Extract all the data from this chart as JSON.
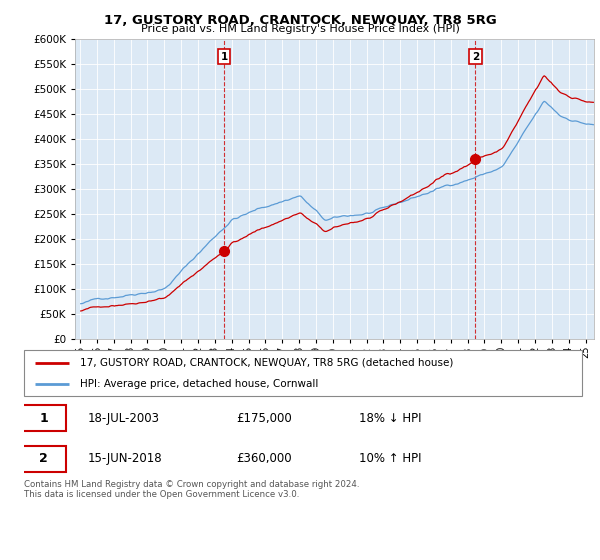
{
  "title": "17, GUSTORY ROAD, CRANTOCK, NEWQUAY, TR8 5RG",
  "subtitle": "Price paid vs. HM Land Registry's House Price Index (HPI)",
  "legend_line1": "17, GUSTORY ROAD, CRANTOCK, NEWQUAY, TR8 5RG (detached house)",
  "legend_line2": "HPI: Average price, detached house, Cornwall",
  "footer": "Contains HM Land Registry data © Crown copyright and database right 2024.\nThis data is licensed under the Open Government Licence v3.0.",
  "sale1_date": "18-JUL-2003",
  "sale1_price": "£175,000",
  "sale1_hpi": "18% ↓ HPI",
  "sale1_x": 2003.54,
  "sale1_y": 175000,
  "sale2_date": "15-JUN-2018",
  "sale2_price": "£360,000",
  "sale2_hpi": "10% ↑ HPI",
  "sale2_x": 2018.46,
  "sale2_y": 360000,
  "hpi_color": "#5b9bd5",
  "sale_color": "#cc0000",
  "vline_color": "#cc0000",
  "marker_color": "#cc0000",
  "bg_color": "#dce9f5",
  "ylim": [
    0,
    600000
  ],
  "yticks": [
    0,
    50000,
    100000,
    150000,
    200000,
    250000,
    300000,
    350000,
    400000,
    450000,
    500000,
    550000,
    600000
  ],
  "xlim_start": 1994.7,
  "xlim_end": 2025.5
}
